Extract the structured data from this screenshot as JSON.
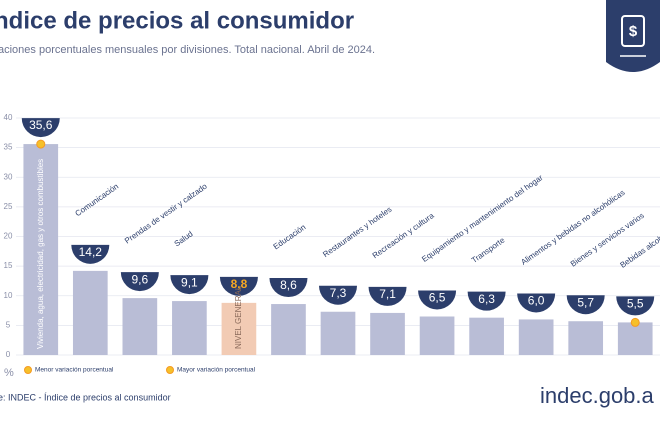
{
  "chart_data": {
    "type": "bar",
    "title": "ndice de precios al consumidor",
    "subtitle": "aciones porcentuales mensuales por divisiones. Total nacional. Abril de 2024.",
    "y_label": "%",
    "source": "e: INDEC - Índice de precios al consumidor",
    "brand": "indec.gob.a",
    "categories": [
      "Vivienda, agua, electricidad, gas y otros combustibles",
      "Comunicación",
      "Prendas de vestir y calzado",
      "Salud",
      "NIVEL GENERAL",
      "Educación",
      "Restaurantes y hoteles",
      "Recreación y cultura",
      "Equipamiento y mantenimiento del hogar",
      "Transporte",
      "Alimentos y bebidas no alcohólicas",
      "Bienes y servicios varios",
      "Bebidas alcohólicas y tabaco"
    ],
    "values": [
      35.6,
      14.2,
      9.6,
      9.1,
      8.8,
      8.6,
      7.3,
      7.1,
      6.5,
      6.3,
      6.0,
      5.7,
      5.5
    ],
    "value_labels": [
      "35,6",
      "14,2",
      "9,6",
      "9,1",
      "8,8",
      "8,6",
      "7,3",
      "7,1",
      "6,5",
      "6,3",
      "6,0",
      "5,7",
      "5,5"
    ],
    "colors": [
      "#b9bdd6",
      "#b9bdd6",
      "#b9bdd6",
      "#b9bdd6",
      "#f2cbb4",
      "#b9bdd6",
      "#b9bdd6",
      "#b9bdd6",
      "#b9bdd6",
      "#b9bdd6",
      "#b9bdd6",
      "#b9bdd6",
      "#b9bdd6"
    ],
    "ylim": [
      0,
      40
    ],
    "yticks": [
      0,
      5,
      10,
      15,
      20,
      25,
      30,
      35,
      40
    ],
    "grid": true,
    "legend": [
      "Menor variación porcentual",
      "Mayor variación porcentual"
    ]
  }
}
